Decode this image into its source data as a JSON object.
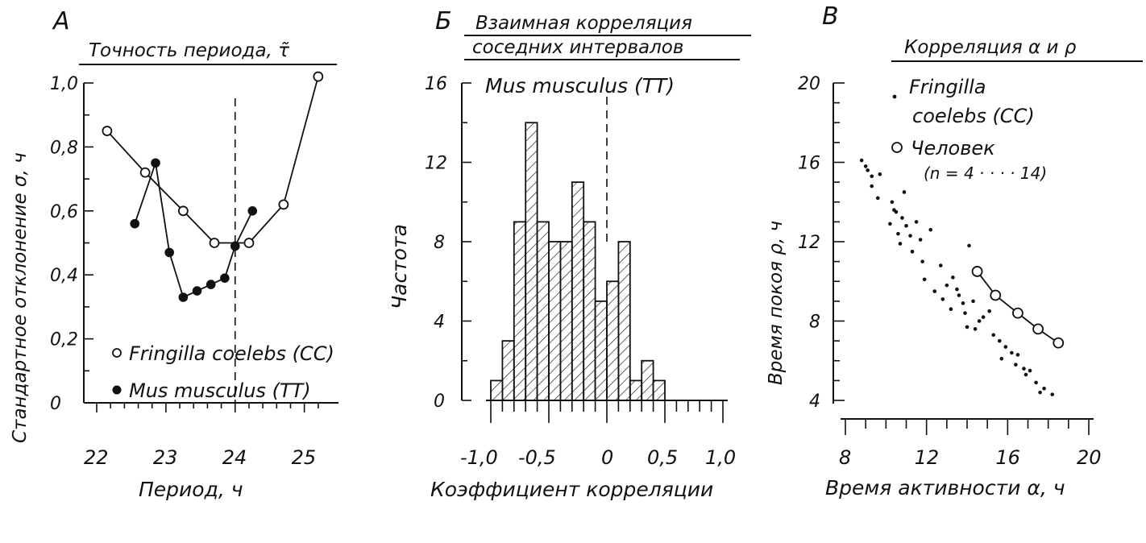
{
  "panels": {
    "a": {
      "letter": "А",
      "title": "Точность периода, τ̃",
      "ylabel": "Стандартное отклонение σ, ч",
      "xlabel": "Период, ч",
      "legend": {
        "open": "Fringilla coelebs (CC)",
        "filled": "Mus musculus (TT)"
      }
    },
    "b": {
      "letter": "Б",
      "title_line1": "Взаимная корреляция",
      "title_line2": "соседних интервалов",
      "species": "Mus musculus (TT)",
      "ylabel": "Частота",
      "xlabel": "Коэффициент   корреляции"
    },
    "c": {
      "letter": "В",
      "title": "Корреляция α и ρ",
      "ylabel": "Время покоя ρ, ч",
      "xlabel": "Время активности α, ч",
      "legend": {
        "dots_line1": "Fringilla",
        "dots_line2": "coelebs (CC)",
        "circle": "Человек",
        "circle_n": "(n = 4 · · · · 14)"
      }
    }
  },
  "chart_data": [
    {
      "type": "line",
      "panel": "А",
      "title": "Точность периода, τ̃",
      "xlabel": "Период, ч",
      "ylabel": "Стандартное отклонение σ, ч",
      "xlim": [
        22,
        25.4
      ],
      "ylim": [
        0,
        1.0
      ],
      "xticks": [
        22,
        23,
        24,
        25
      ],
      "yticks": [
        0,
        0.2,
        0.4,
        0.6,
        0.8,
        1.0
      ],
      "ytick_labels": [
        "0",
        "0,2",
        "0,4",
        "0,6",
        "0,8",
        "1,0"
      ],
      "vline_x": 24,
      "series": [
        {
          "name": "Fringilla coelebs (CC)",
          "marker": "open",
          "x": [
            22.15,
            22.7,
            23.25,
            23.7,
            24.2,
            24.7,
            25.2
          ],
          "y": [
            0.85,
            0.72,
            0.6,
            0.5,
            0.5,
            0.62,
            1.02
          ]
        },
        {
          "name": "Mus musculus (TT)",
          "marker": "filled",
          "x": [
            22.55,
            22.85,
            23.05,
            23.25,
            23.45,
            23.65,
            23.85,
            24.0,
            24.25
          ],
          "y": [
            0.56,
            0.75,
            0.47,
            0.33,
            0.35,
            0.37,
            0.39,
            0.49,
            0.6
          ]
        }
      ]
    },
    {
      "type": "bar",
      "panel": "Б",
      "title": "Взаимная корреляция соседних интервалов",
      "subtitle": "Mus musculus (TT)",
      "xlabel": "Коэффициент корреляции",
      "ylabel": "Частота",
      "xlim": [
        -1.0,
        1.0
      ],
      "ylim": [
        0,
        16
      ],
      "xticks": [
        -1.0,
        -0.5,
        0,
        0.5,
        1.0
      ],
      "xtick_labels": [
        "-1,0",
        "-0,5",
        "0",
        "0,5",
        "1,0"
      ],
      "yticks": [
        0,
        4,
        8,
        12,
        16
      ],
      "vline_x": 0,
      "bin_width": 0.1,
      "bins_left": [
        -1.0,
        -0.9,
        -0.8,
        -0.7,
        -0.6,
        -0.5,
        -0.4,
        -0.3,
        -0.2,
        -0.1,
        0.0,
        0.1,
        0.2,
        0.3,
        0.4
      ],
      "values": [
        1,
        3,
        9,
        14,
        9,
        8,
        8,
        11,
        9,
        5,
        6,
        8,
        1,
        2,
        1
      ]
    },
    {
      "type": "scatter",
      "panel": "В",
      "title": "Корреляция α и ρ",
      "xlabel": "Время активности α, ч",
      "ylabel": "Время покоя ρ, ч",
      "xlim": [
        8,
        20
      ],
      "ylim": [
        4,
        20
      ],
      "xticks": [
        8,
        12,
        16,
        20
      ],
      "yticks": [
        4,
        8,
        12,
        16,
        20
      ],
      "series": [
        {
          "name": "Fringilla coelebs (CC)",
          "marker": "dot",
          "x": [
            8.8,
            9.1,
            9.3,
            9.0,
            9.7,
            9.6,
            9.3,
            10.3,
            10.5,
            10.2,
            10.8,
            10.6,
            11.0,
            11.2,
            10.4,
            10.9,
            11.5,
            11.7,
            10.7,
            11.3,
            11.8,
            12.2,
            11.9,
            12.4,
            12.7,
            13.0,
            12.8,
            13.3,
            13.6,
            13.2,
            13.8,
            14.1,
            13.5,
            13.9,
            14.3,
            14.6,
            14.0,
            14.4,
            14.8,
            15.1,
            15.3,
            15.6,
            15.9,
            16.2,
            15.7,
            16.4,
            16.8,
            17.1,
            17.4,
            17.8,
            18.2,
            17.6,
            16.9,
            16.5
          ],
          "y": [
            16.1,
            15.6,
            15.3,
            15.8,
            15.4,
            14.2,
            14.8,
            14.0,
            13.5,
            12.9,
            13.2,
            12.4,
            12.8,
            12.3,
            13.6,
            14.5,
            13.0,
            12.1,
            11.9,
            11.5,
            11.0,
            12.6,
            10.1,
            9.5,
            10.8,
            9.8,
            9.1,
            10.2,
            9.3,
            8.6,
            8.9,
            11.8,
            9.6,
            8.4,
            9.0,
            8.0,
            7.7,
            7.6,
            8.2,
            8.5,
            7.3,
            7.0,
            6.7,
            6.4,
            6.1,
            5.8,
            5.6,
            5.5,
            4.9,
            4.6,
            4.3,
            4.4,
            5.3,
            6.3
          ]
        },
        {
          "name": "Человек (n = 4 · · · · 14)",
          "marker": "open",
          "x": [
            14.5,
            15.4,
            16.5,
            17.5,
            18.5
          ],
          "y": [
            10.5,
            9.3,
            8.4,
            7.6,
            6.9
          ]
        }
      ]
    }
  ]
}
